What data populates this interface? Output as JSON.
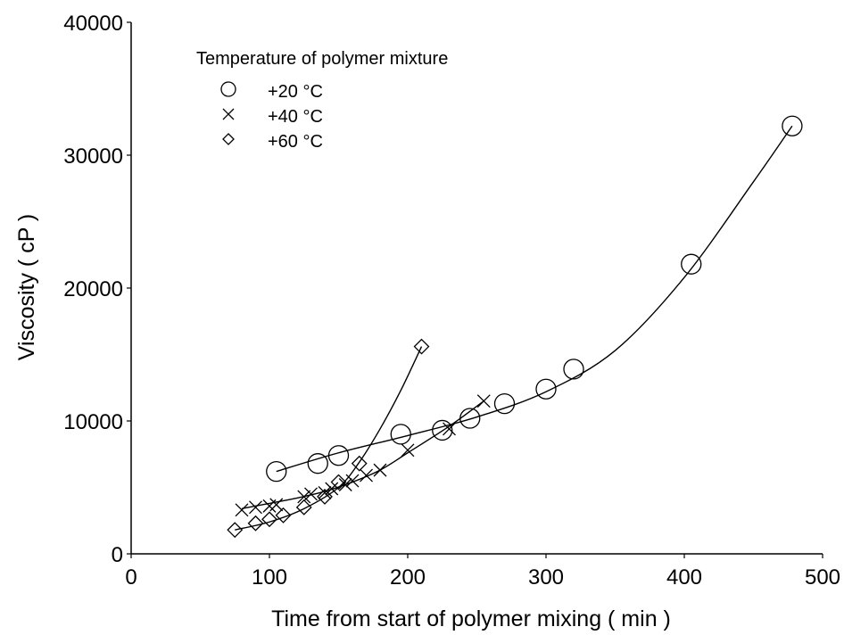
{
  "chart_data": {
    "type": "scatter",
    "xlabel": "Time from start of polymer mixing      ( min )",
    "ylabel": "Viscosity    ( cP )",
    "xlim": [
      0,
      500
    ],
    "ylim": [
      0,
      40000
    ],
    "x_ticks": [
      0,
      100,
      200,
      300,
      400,
      500
    ],
    "y_ticks": [
      0,
      10000,
      20000,
      30000,
      40000
    ],
    "x_tick_labels": [
      "0",
      "100",
      "200",
      "300",
      "400",
      "500"
    ],
    "y_tick_labels": [
      "0",
      "10000",
      "20000",
      "30000",
      "40000"
    ],
    "grid": false,
    "legend": {
      "title": "Temperature of polymer mixture",
      "position": "top-left"
    },
    "series": [
      {
        "name": "+20 °C",
        "marker": "circle",
        "x": [
          105,
          135,
          150,
          195,
          225,
          245,
          270,
          300,
          320,
          405,
          478
        ],
        "y": [
          6200,
          6800,
          7400,
          9000,
          9300,
          10200,
          11300,
          12400,
          13900,
          21800,
          32200
        ]
      },
      {
        "name": "+40 °C",
        "marker": "x",
        "x": [
          80,
          90,
          100,
          105,
          125,
          130,
          140,
          145,
          155,
          160,
          170,
          180,
          200,
          230,
          255
        ],
        "y": [
          3300,
          3500,
          3600,
          3700,
          4300,
          4500,
          4600,
          4900,
          5200,
          5500,
          5900,
          6300,
          7800,
          9400,
          11500
        ]
      },
      {
        "name": "+60 °C",
        "marker": "diamond",
        "x": [
          75,
          90,
          100,
          110,
          125,
          140,
          150,
          165,
          210
        ],
        "y": [
          1800,
          2300,
          2600,
          2900,
          3500,
          4300,
          5400,
          6800,
          15600
        ]
      }
    ],
    "fit_curves": [
      {
        "series": "+20 °C",
        "x": [
          105,
          150,
          200,
          250,
          300,
          350,
          400,
          450,
          478
        ],
        "y": [
          6200,
          7600,
          8900,
          10300,
          12200,
          15300,
          20800,
          28000,
          32200
        ]
      },
      {
        "series": "+40 °C",
        "x": [
          80,
          100,
          120,
          140,
          160,
          180,
          200,
          230,
          255
        ],
        "y": [
          3400,
          3800,
          4200,
          4700,
          5400,
          6300,
          7600,
          9600,
          11500
        ]
      },
      {
        "series": "+60 °C",
        "x": [
          75,
          100,
          125,
          150,
          165,
          180,
          195,
          210
        ],
        "y": [
          1800,
          2400,
          3400,
          5000,
          6900,
          9400,
          12300,
          15600
        ]
      }
    ]
  }
}
